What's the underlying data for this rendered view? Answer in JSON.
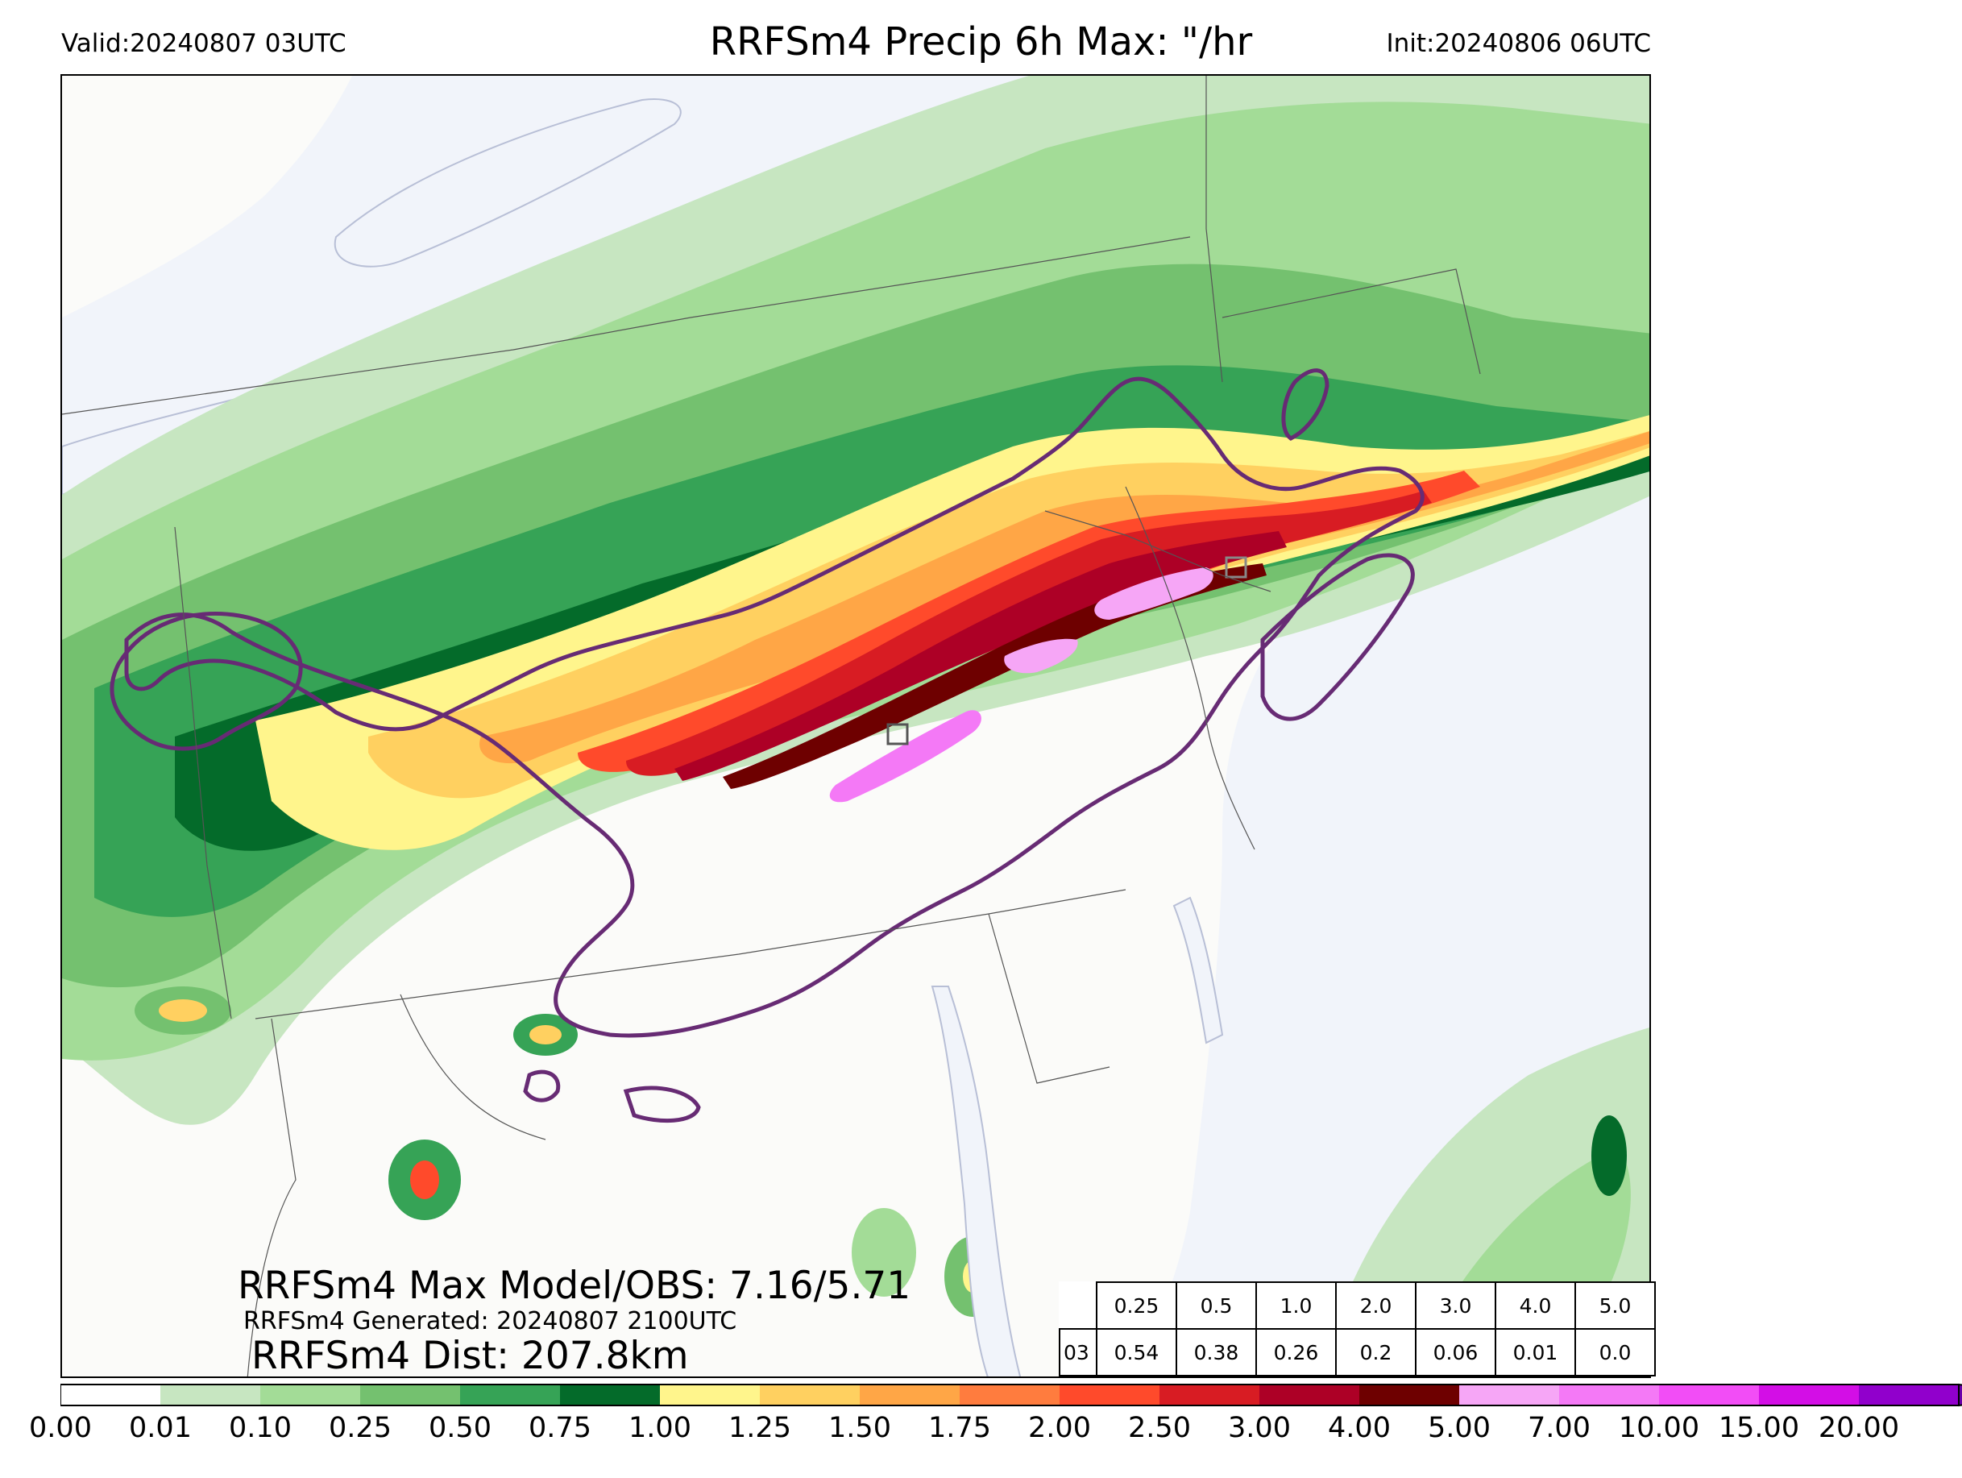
{
  "header": {
    "valid": "Valid:20240807 03UTC",
    "title": "RRFSm4 Precip 6h Max: \"/hr",
    "init": "Init:20240806 06UTC"
  },
  "stats": {
    "max_model_obs": "RRFSm4 Max Model/OBS: 7.16/5.71",
    "generated": "RRFSm4 Generated: 20240807 2100UTC",
    "distance": "RRFSm4 Dist: 207.8km"
  },
  "threshold_table": {
    "thresholds": [
      "0.25",
      "0.5",
      "1.0",
      "2.0",
      "3.0",
      "4.0",
      "5.0"
    ],
    "row_label": "03",
    "values": [
      "0.54",
      "0.38",
      "0.26",
      "0.2",
      "0.06",
      "0.01",
      "0.0"
    ]
  },
  "colorbar": {
    "ticks": [
      "0.00",
      "0.01",
      "0.10",
      "0.25",
      "0.50",
      "0.75",
      "1.00",
      "1.25",
      "1.50",
      "1.75",
      "2.00",
      "2.50",
      "3.00",
      "4.00",
      "5.00",
      "7.00",
      "10.00",
      "15.00",
      "20.00"
    ],
    "colors": [
      "#ffffff",
      "#c7e6c1",
      "#a3dc97",
      "#74c16f",
      "#36a356",
      "#046b2a",
      "#fff58c",
      "#ffd060",
      "#ffa646",
      "#ff7c3e",
      "#ff4a2b",
      "#d81c23",
      "#ad0026",
      "#6e0000",
      "#f6a6f6",
      "#f479f6",
      "#f24df6",
      "#d30ee6",
      "#9100cc"
    ],
    "extend_color": "#6a00aa"
  },
  "map": {
    "land_color": "#fbfbf9",
    "water_color": "#f1f4fa",
    "outline_color": "#672b74",
    "observation_box_color": "#555555"
  }
}
